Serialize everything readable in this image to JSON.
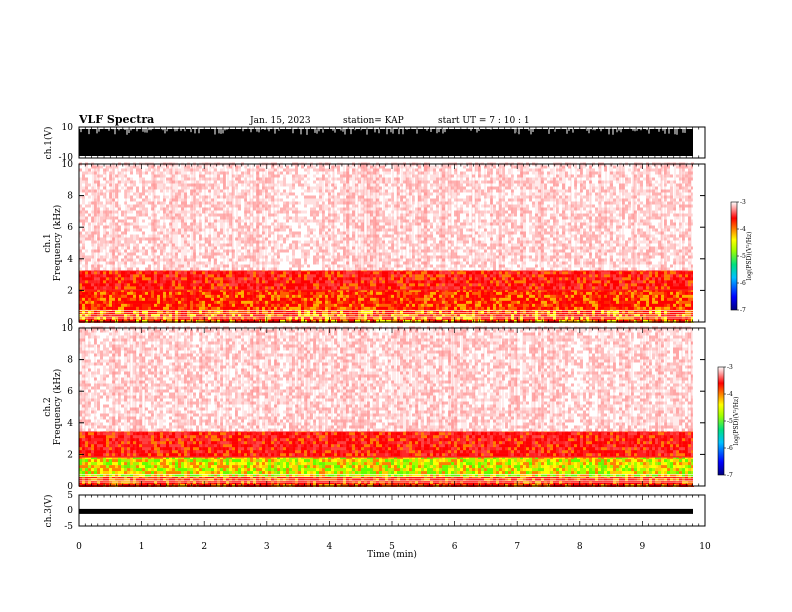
{
  "header": {
    "title": "VLF Spectra",
    "date": "Jan. 15, 2023",
    "station": "station= KAP",
    "start": "start UT =  7 : 10 : 1"
  },
  "chart_data": [
    {
      "type": "line",
      "panel": "ch1-waveform",
      "ylabel": "ch.1(V)",
      "ylim": [
        -10,
        10
      ],
      "yticks": [
        "10",
        "-10"
      ],
      "xlim": [
        0,
        10
      ],
      "note_values": "saturated waveform filling -10..10 V"
    },
    {
      "type": "heatmap",
      "panel": "ch1-spectrogram",
      "ylabel": "ch.1\nFrequency (kHz)",
      "ylabel_lines": [
        "ch.1",
        "Frequency (kHz)"
      ],
      "ylim": [
        0,
        10
      ],
      "yticks": [
        "0",
        "2",
        "4",
        "6",
        "8",
        "10"
      ],
      "xlim": [
        0,
        10
      ],
      "colorbar": {
        "label": "log(PSD)(V²/Hz)",
        "range": [
          -7,
          -3
        ],
        "ticks": [
          "-3",
          "-4",
          "-5",
          "-6",
          "-7"
        ]
      },
      "bands_khz": [
        {
          "from": 0.0,
          "to": 0.8,
          "level": "yellow"
        },
        {
          "from": 0.8,
          "to": 2.0,
          "level": "orange"
        },
        {
          "from": 2.0,
          "to": 3.3,
          "level": "red"
        },
        {
          "from": 3.3,
          "to": 10.0,
          "level": "faint"
        }
      ]
    },
    {
      "type": "heatmap",
      "panel": "ch2-spectrogram",
      "ylabel": "ch.2\nFrequency (kHz)",
      "ylabel_lines": [
        "ch.2",
        "Frequency (kHz)"
      ],
      "ylim": [
        0,
        10
      ],
      "yticks": [
        "0",
        "2",
        "4",
        "6",
        "8",
        "10"
      ],
      "xlim": [
        0,
        10
      ],
      "colorbar": {
        "label": "log(PSD)(V²/Hz)",
        "range": [
          -7,
          -3
        ],
        "ticks": [
          "-3",
          "-4",
          "-5",
          "-6",
          "-7"
        ]
      },
      "bands_khz": [
        {
          "from": 0.0,
          "to": 0.6,
          "level": "orange"
        },
        {
          "from": 0.6,
          "to": 1.8,
          "level": "green"
        },
        {
          "from": 1.8,
          "to": 3.5,
          "level": "red"
        },
        {
          "from": 3.5,
          "to": 10.0,
          "level": "faint"
        }
      ]
    },
    {
      "type": "line",
      "panel": "ch3-waveform",
      "ylabel": "ch.3(V)",
      "ylim": [
        -5,
        5
      ],
      "yticks": [
        "5",
        "0",
        "-5"
      ],
      "xlim": [
        0,
        10
      ],
      "xlabel": "Time (min)",
      "xticks": [
        "0",
        "1",
        "2",
        "3",
        "4",
        "5",
        "6",
        "7",
        "8",
        "9",
        "10"
      ],
      "note_values": "nearly constant near -0.3 V"
    }
  ],
  "colors": {
    "colormap": [
      "#000088",
      "#0000ff",
      "#00a0ff",
      "#00e080",
      "#80ff00",
      "#ffff00",
      "#ff8000",
      "#ff0000",
      "#ffc0c0",
      "#ffffff"
    ],
    "trace": "#000000"
  }
}
